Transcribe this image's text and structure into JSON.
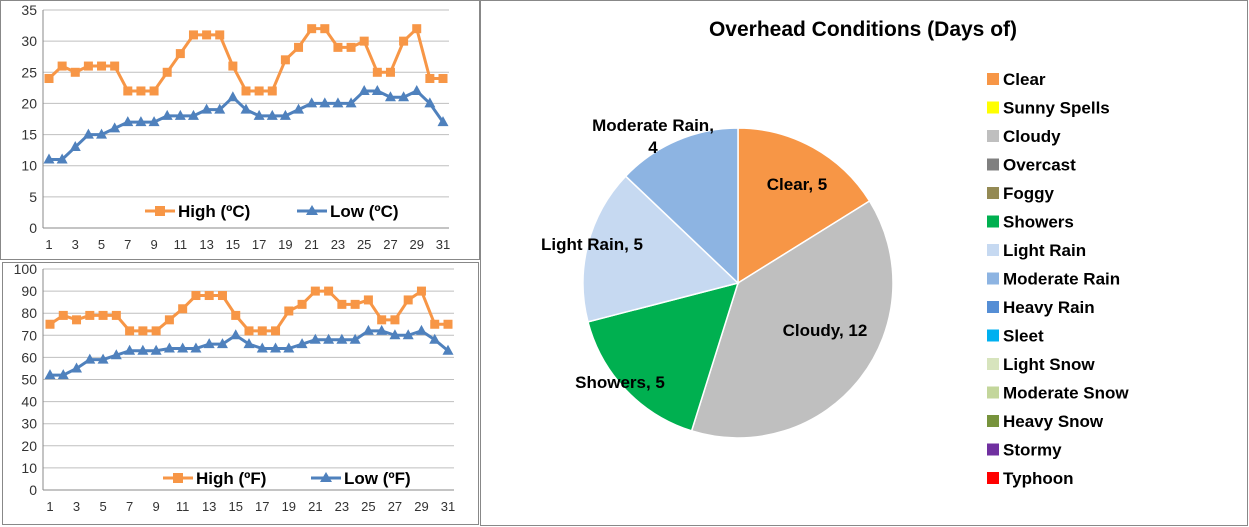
{
  "chart_data": [
    {
      "type": "line",
      "title": "",
      "categories": [
        1,
        2,
        3,
        4,
        5,
        6,
        7,
        8,
        9,
        10,
        11,
        12,
        13,
        14,
        15,
        16,
        17,
        18,
        19,
        20,
        21,
        22,
        23,
        24,
        25,
        26,
        27,
        28,
        29,
        30,
        31
      ],
      "x_tick_labels": [
        "1",
        "3",
        "5",
        "7",
        "9",
        "11",
        "13",
        "15",
        "17",
        "19",
        "21",
        "23",
        "25",
        "27",
        "29",
        "31"
      ],
      "ylim": [
        0,
        35
      ],
      "y_ticks": [
        0,
        5,
        10,
        15,
        20,
        25,
        30,
        35
      ],
      "grid": true,
      "legend": "bottom-inside",
      "series": [
        {
          "name": "High (ºC)",
          "color": "#F79646",
          "marker": "square",
          "values": [
            24,
            26,
            25,
            26,
            26,
            26,
            22,
            22,
            22,
            25,
            28,
            31,
            31,
            31,
            26,
            22,
            22,
            22,
            27,
            29,
            32,
            32,
            29,
            29,
            30,
            25,
            25,
            30,
            32,
            24,
            24
          ]
        },
        {
          "name": "Low (ºC)",
          "color": "#4F81BD",
          "marker": "triangle",
          "values": [
            11,
            11,
            13,
            15,
            15,
            16,
            17,
            17,
            17,
            18,
            18,
            18,
            19,
            19,
            21,
            19,
            18,
            18,
            18,
            19,
            20,
            20,
            20,
            20,
            22,
            22,
            21,
            21,
            22,
            20,
            17
          ]
        }
      ]
    },
    {
      "type": "line",
      "title": "",
      "categories": [
        1,
        2,
        3,
        4,
        5,
        6,
        7,
        8,
        9,
        10,
        11,
        12,
        13,
        14,
        15,
        16,
        17,
        18,
        19,
        20,
        21,
        22,
        23,
        24,
        25,
        26,
        27,
        28,
        29,
        30,
        31
      ],
      "x_tick_labels": [
        "1",
        "3",
        "5",
        "7",
        "9",
        "11",
        "13",
        "15",
        "17",
        "19",
        "21",
        "23",
        "25",
        "27",
        "29",
        "31"
      ],
      "ylim": [
        0,
        100
      ],
      "y_ticks": [
        0,
        10,
        20,
        30,
        40,
        50,
        60,
        70,
        80,
        90,
        100
      ],
      "grid": true,
      "legend": "bottom-inside",
      "series": [
        {
          "name": "High (ºF)",
          "color": "#F79646",
          "marker": "square",
          "values": [
            75,
            79,
            77,
            79,
            79,
            79,
            72,
            72,
            72,
            77,
            82,
            88,
            88,
            88,
            79,
            72,
            72,
            72,
            81,
            84,
            90,
            90,
            84,
            84,
            86,
            77,
            77,
            86,
            90,
            75,
            75
          ]
        },
        {
          "name": "Low (ºF)",
          "color": "#4F81BD",
          "marker": "triangle",
          "values": [
            52,
            52,
            55,
            59,
            59,
            61,
            63,
            63,
            63,
            64,
            64,
            64,
            66,
            66,
            70,
            66,
            64,
            64,
            64,
            66,
            68,
            68,
            68,
            68,
            72,
            72,
            70,
            70,
            72,
            68,
            63
          ]
        }
      ]
    },
    {
      "type": "pie",
      "title": "Overhead Conditions (Days of)",
      "legend": "right",
      "slices": [
        {
          "label": "Clear",
          "value": 5,
          "data_label": "Clear, 5",
          "color": "#F79646"
        },
        {
          "label": "Sunny Spells",
          "value": 0,
          "color": "#FFFF00"
        },
        {
          "label": "Cloudy",
          "value": 12,
          "data_label": "Cloudy, 12",
          "color": "#BFBFBF"
        },
        {
          "label": "Overcast",
          "value": 0,
          "color": "#808080"
        },
        {
          "label": "Foggy",
          "value": 0,
          "color": "#948A54"
        },
        {
          "label": "Showers",
          "value": 5,
          "data_label": "Showers, 5",
          "color": "#00B050"
        },
        {
          "label": "Light Rain",
          "value": 5,
          "data_label": "Light Rain, 5",
          "color": "#C6D9F1"
        },
        {
          "label": "Moderate Rain",
          "value": 4,
          "data_label": "Moderate Rain, 4",
          "color": "#8DB4E2"
        },
        {
          "label": "Heavy Rain",
          "value": 0,
          "color": "#558ED5"
        },
        {
          "label": "Sleet",
          "value": 0,
          "color": "#00B0F0"
        },
        {
          "label": "Light Snow",
          "value": 0,
          "color": "#D7E4BD"
        },
        {
          "label": "Moderate Snow",
          "value": 0,
          "color": "#C3D69B"
        },
        {
          "label": "Heavy Snow",
          "value": 0,
          "color": "#77933C"
        },
        {
          "label": "Stormy",
          "value": 0,
          "color": "#7030A0"
        },
        {
          "label": "Typhoon",
          "value": 0,
          "color": "#FF0000"
        }
      ]
    }
  ]
}
